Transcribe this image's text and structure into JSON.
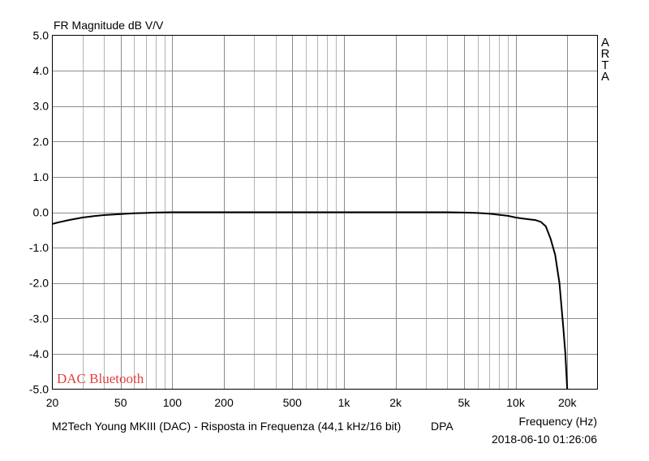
{
  "chart_data": {
    "type": "line",
    "title": "FR Magnitude dB V/V",
    "xlabel": "Frequency (Hz)",
    "ylabel": "",
    "x_scale": "log",
    "xlim": [
      20,
      30000
    ],
    "ylim": [
      -5.0,
      5.0
    ],
    "grid": true,
    "x_ticks": [
      20,
      50,
      100,
      200,
      500,
      1000,
      2000,
      5000,
      10000,
      20000
    ],
    "x_tick_labels": [
      "20",
      "50",
      "100",
      "200",
      "500",
      "1k",
      "2k",
      "5k",
      "10k",
      "20k"
    ],
    "y_ticks": [
      5,
      4,
      3,
      2,
      1,
      0,
      -1,
      -2,
      -3,
      -4,
      -5
    ],
    "y_tick_labels": [
      "5.0",
      "4.0",
      "3.0",
      "2.0",
      "1.0",
      "0.0",
      "-1.0",
      "-2.0",
      "-3.0",
      "-4.0",
      "-5.0"
    ],
    "series": [
      {
        "color": "#000000",
        "x": [
          20,
          22,
          25,
          30,
          35,
          40,
          50,
          60,
          70,
          80,
          100,
          150,
          200,
          500,
          1000,
          2000,
          3000,
          4000,
          5000,
          6000,
          7000,
          8000,
          9000,
          10000,
          11000,
          12000,
          13000,
          14000,
          15000,
          16000,
          17000,
          18000,
          19000,
          19500,
          20000
        ],
        "y": [
          -0.33,
          -0.28,
          -0.22,
          -0.15,
          -0.11,
          -0.08,
          -0.05,
          -0.03,
          -0.02,
          -0.01,
          0.0,
          0.0,
          0.0,
          0.0,
          0.0,
          0.0,
          0.0,
          0.0,
          -0.01,
          -0.02,
          -0.04,
          -0.07,
          -0.1,
          -0.15,
          -0.18,
          -0.2,
          -0.22,
          -0.27,
          -0.4,
          -0.75,
          -1.2,
          -2.0,
          -3.3,
          -4.0,
          -5.0
        ]
      }
    ],
    "annotations": [
      {
        "text": "DAC Bluetooth",
        "color": "#e04040"
      }
    ]
  },
  "brand": "ARTA",
  "footer": {
    "description": "M2Tech Young MKIII (DAC) - Risposta in Frequenza (44,1 kHz/16 bit)",
    "mode": "DPA",
    "timestamp": "2018-06-10  01:26:06"
  }
}
